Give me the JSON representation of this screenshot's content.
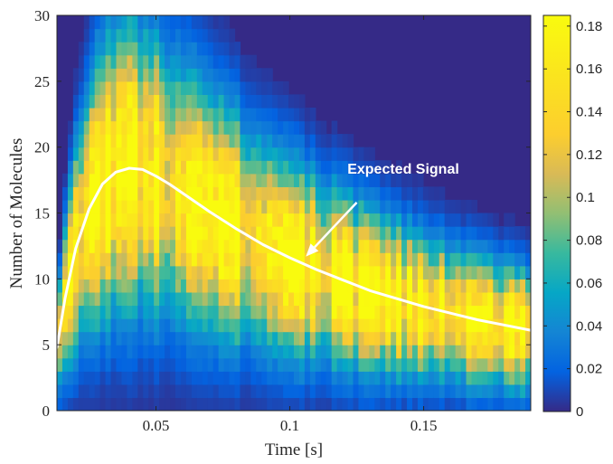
{
  "chart_data": {
    "type": "heatmap",
    "title": "",
    "xlabel": "Time [s]",
    "ylabel": "Number of Molecules",
    "xlim": [
      0.013,
      0.19
    ],
    "ylim": [
      0,
      30
    ],
    "xticks": [
      0.05,
      0.1,
      0.15
    ],
    "xtick_labels": [
      "0.05",
      "0.1",
      "0.15"
    ],
    "yticks": [
      0,
      5,
      10,
      15,
      20,
      25,
      30
    ],
    "ytick_labels": [
      "0",
      "5",
      "10",
      "15",
      "20",
      "25",
      "30"
    ],
    "colorbar": {
      "colormap": "parula",
      "range": [
        0,
        0.185
      ],
      "ticks": [
        0,
        0.02,
        0.04,
        0.06,
        0.08,
        0.1,
        0.12,
        0.14,
        0.16,
        0.18
      ],
      "tick_labels": [
        "0",
        "0.02",
        "0.04",
        "0.06",
        "0.08",
        "0.1",
        "0.12",
        "0.14",
        "0.16",
        "0.18"
      ]
    },
    "series": [
      {
        "style": "white-line",
        "x": [
          0.013,
          0.016,
          0.02,
          0.025,
          0.03,
          0.035,
          0.04,
          0.045,
          0.05,
          0.055,
          0.06,
          0.07,
          0.08,
          0.09,
          0.1,
          0.11,
          0.12,
          0.13,
          0.14,
          0.15,
          0.16,
          0.17,
          0.18,
          0.19
        ],
        "y": [
          4.8,
          8.5,
          12.3,
          15.3,
          17.2,
          18.1,
          18.4,
          18.3,
          17.8,
          17.2,
          16.5,
          15.1,
          13.8,
          12.6,
          11.6,
          10.7,
          9.9,
          9.1,
          8.5,
          7.9,
          7.4,
          6.9,
          6.5,
          6.1
        ]
      }
    ],
    "annotations": [
      {
        "text": "Expected Signal",
        "arrow_from": [
          0.125,
          15.8
        ],
        "arrow_to": [
          0.106,
          11.7
        ]
      }
    ],
    "heatmap_model": {
      "description_values": "probability mass over molecule count per time bin, approximated as Gaussian around expected signal",
      "peak_value": 0.17
    }
  }
}
